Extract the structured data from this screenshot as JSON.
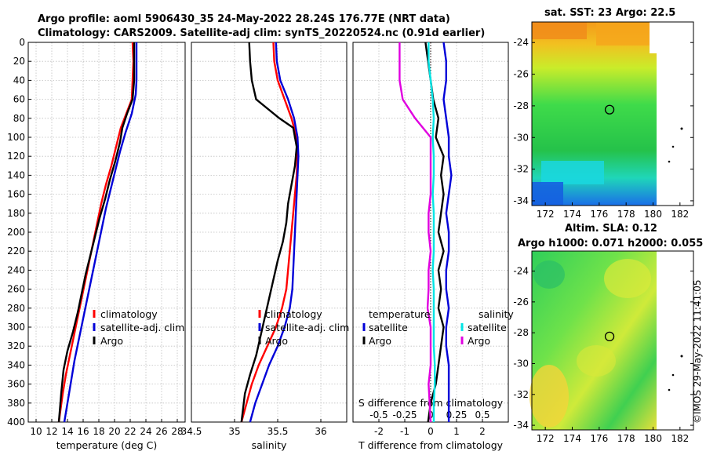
{
  "titles": {
    "line1": "Argo profile: aoml 5906430_35 24-May-2022 28.24S 176.77E (NRT data)",
    "line2": "Climatology: CARS2009. Satellite-adj clim: synTS_20220524.nc (0.91d earlier)",
    "sst": "sat. SST: 23 Argo: 22.5",
    "sla1": "Altim. SLA: 0.12",
    "sla2": "Argo h1000: 0.071 h2000: 0.055",
    "stamp": "©IMOS 29-May-2022 11:41:05"
  },
  "colors": {
    "climatology": "#ff0000",
    "satellite": "#0000d8",
    "argo": "#000000",
    "sal_satellite": "#00e5e5",
    "sal_argo": "#e000e0"
  },
  "legend": {
    "climatology": "climatology",
    "satellite_adj": "satellite-adj. clim",
    "argo": "Argo",
    "temperature": "temperature",
    "salinity": "salinity",
    "satellite": "satellite"
  },
  "chart_data": [
    {
      "type": "line",
      "name": "temperature-profile",
      "xlabel": "temperature (deg C)",
      "ylabel": "",
      "xlim": [
        9,
        29
      ],
      "ylim": [
        400,
        0
      ],
      "xticks": [
        "10",
        "12",
        "14",
        "16",
        "18",
        "20",
        "22",
        "24",
        "26",
        "28"
      ],
      "xtick_values": [
        10,
        12,
        14,
        16,
        18,
        20,
        22,
        24,
        26,
        28
      ],
      "yticks": [
        "0",
        "20",
        "40",
        "60",
        "80",
        "100",
        "120",
        "140",
        "160",
        "180",
        "200",
        "220",
        "240",
        "260",
        "280",
        "300",
        "320",
        "340",
        "360",
        "380",
        "400"
      ],
      "ytick_values": [
        0,
        20,
        40,
        60,
        80,
        100,
        120,
        140,
        160,
        180,
        200,
        220,
        240,
        260,
        280,
        300,
        320,
        340,
        360,
        380,
        400
      ],
      "series": [
        {
          "name": "climatology",
          "x": [
            22.3,
            22.4,
            22.3,
            22.2,
            21.5,
            20.8,
            20.2,
            19.6,
            18.9,
            18.3,
            17.8,
            17.3,
            16.8,
            16.3,
            15.8,
            15.3,
            14.8,
            14.3,
            13.8,
            13.4,
            12.9
          ],
          "depth": [
            0,
            20,
            40,
            60,
            75,
            90,
            110,
            130,
            150,
            170,
            190,
            210,
            230,
            250,
            270,
            290,
            310,
            330,
            350,
            370,
            400
          ]
        },
        {
          "name": "satellite-adj. clim",
          "x": [
            22.8,
            22.8,
            22.8,
            22.7,
            22.2,
            21.4,
            20.7,
            20.1,
            19.5,
            18.9,
            18.4,
            17.9,
            17.4,
            16.9,
            16.4,
            15.9,
            15.4,
            14.9,
            14.5,
            14.1,
            13.6
          ],
          "depth": [
            0,
            20,
            40,
            55,
            75,
            95,
            115,
            135,
            155,
            175,
            195,
            215,
            235,
            255,
            275,
            295,
            315,
            335,
            355,
            375,
            400
          ]
        },
        {
          "name": "Argo",
          "x": [
            22.5,
            22.5,
            22.5,
            22.3,
            21.6,
            21.0,
            20.7,
            20.1,
            19.4,
            18.8,
            18.1,
            17.5,
            16.9,
            16.3,
            15.8,
            15.3,
            14.7,
            14.0,
            13.5,
            13.2,
            12.9
          ],
          "depth": [
            0,
            20,
            40,
            60,
            75,
            90,
            105,
            125,
            145,
            165,
            185,
            205,
            225,
            245,
            265,
            285,
            305,
            325,
            345,
            370,
            400
          ]
        }
      ]
    },
    {
      "type": "line",
      "name": "salinity-profile",
      "xlabel": "salinity",
      "xlim": [
        34.5,
        36.3
      ],
      "ylim": [
        400,
        0
      ],
      "xticks": [
        "34.5",
        "35",
        "35.5",
        "36"
      ],
      "xtick_values": [
        34.5,
        35,
        35.5,
        36
      ],
      "series": [
        {
          "name": "climatology",
          "x": [
            35.45,
            35.46,
            35.5,
            35.58,
            35.66,
            35.72,
            35.73,
            35.72,
            35.7,
            35.68,
            35.66,
            35.64,
            35.62,
            35.6,
            35.55,
            35.48,
            35.38,
            35.28,
            35.2,
            35.14,
            35.08
          ],
          "depth": [
            0,
            20,
            40,
            60,
            80,
            100,
            120,
            140,
            160,
            180,
            200,
            220,
            240,
            260,
            280,
            300,
            320,
            340,
            360,
            380,
            400
          ]
        },
        {
          "name": "satellite-adj. clim",
          "x": [
            35.48,
            35.49,
            35.53,
            35.62,
            35.69,
            35.73,
            35.74,
            35.73,
            35.72,
            35.71,
            35.7,
            35.69,
            35.68,
            35.67,
            35.64,
            35.58,
            35.5,
            35.4,
            35.32,
            35.24,
            35.18
          ],
          "depth": [
            0,
            20,
            40,
            60,
            80,
            100,
            120,
            140,
            160,
            180,
            200,
            220,
            240,
            260,
            280,
            300,
            320,
            340,
            360,
            380,
            400
          ]
        },
        {
          "name": "Argo",
          "x": [
            35.17,
            35.18,
            35.2,
            35.25,
            35.52,
            35.68,
            35.72,
            35.7,
            35.66,
            35.62,
            35.6,
            35.56,
            35.5,
            35.45,
            35.4,
            35.35,
            35.3,
            35.25,
            35.18,
            35.12,
            35.08
          ],
          "depth": [
            0,
            20,
            40,
            60,
            80,
            90,
            110,
            130,
            150,
            170,
            190,
            210,
            230,
            250,
            270,
            290,
            310,
            330,
            350,
            370,
            400
          ]
        }
      ]
    },
    {
      "type": "line",
      "name": "difference-profile",
      "xlabel": "T difference from climatology",
      "xlabel_top": "S difference from climatology",
      "xlim": [
        -3,
        3
      ],
      "ylim": [
        400,
        0
      ],
      "xticks": [
        "-2",
        "-1",
        "0",
        "1",
        "2"
      ],
      "xtick_values": [
        -2,
        -1,
        0,
        1,
        2
      ],
      "xticks_top": [
        "-0.5",
        "-0.25",
        "0",
        "0.25",
        "0.5"
      ],
      "xtick_values_top": [
        -0.5,
        -0.25,
        0,
        0.25,
        0.5
      ],
      "series": [
        {
          "name": "temperature satellite",
          "x": [
            0.5,
            0.6,
            0.6,
            0.5,
            0.6,
            0.7,
            0.7,
            0.8,
            0.7,
            0.6,
            0.7,
            0.7,
            0.6,
            0.6,
            0.7,
            0.6,
            0.6,
            0.7,
            0.7,
            0.7,
            0.7
          ],
          "depth": [
            0,
            20,
            40,
            60,
            80,
            100,
            120,
            140,
            160,
            180,
            200,
            220,
            240,
            260,
            280,
            300,
            320,
            340,
            360,
            380,
            400
          ]
        },
        {
          "name": "temperature Argo",
          "x": [
            -0.2,
            -0.1,
            0.0,
            0.1,
            0.3,
            0.2,
            0.5,
            0.4,
            0.5,
            0.4,
            0.3,
            0.5,
            0.3,
            0.4,
            0.3,
            0.5,
            0.4,
            0.3,
            0.2,
            0.0,
            -0.1
          ],
          "depth": [
            0,
            20,
            40,
            60,
            80,
            100,
            120,
            140,
            160,
            180,
            200,
            220,
            240,
            260,
            280,
            300,
            320,
            340,
            360,
            380,
            400
          ]
        },
        {
          "name": "salinity satellite",
          "x": [
            -0.02,
            -0.02,
            0.0,
            0.02,
            0.03,
            0.02,
            0.03,
            0.03,
            0.02,
            0.03,
            0.03,
            0.03,
            0.02,
            0.03,
            0.03,
            0.03,
            0.03,
            0.04,
            0.04,
            0.03,
            0.03
          ],
          "depth": [
            0,
            20,
            40,
            60,
            80,
            100,
            120,
            140,
            160,
            180,
            200,
            220,
            240,
            260,
            280,
            300,
            320,
            340,
            360,
            380,
            400
          ]
        },
        {
          "name": "salinity Argo",
          "x": [
            -0.3,
            -0.3,
            -0.3,
            -0.27,
            -0.15,
            0.0,
            0.0,
            0.0,
            0.0,
            -0.02,
            -0.02,
            0.0,
            -0.02,
            -0.02,
            -0.03,
            0.0,
            0.0,
            0.0,
            -0.02,
            -0.01,
            0.0
          ],
          "depth": [
            0,
            20,
            40,
            60,
            80,
            100,
            120,
            140,
            160,
            180,
            200,
            220,
            240,
            260,
            280,
            300,
            320,
            340,
            360,
            380,
            400
          ]
        }
      ]
    },
    {
      "type": "heatmap",
      "name": "sst-map",
      "title": "sat. SST: 23 Argo: 22.5",
      "xlim": [
        171,
        183
      ],
      "ylim": [
        -34.3,
        -22.7
      ],
      "xticks": [
        "172",
        "174",
        "176",
        "178",
        "180",
        "182"
      ],
      "xtick_values": [
        172,
        174,
        176,
        178,
        180,
        182
      ],
      "yticks": [
        "-24",
        "-26",
        "-28",
        "-30",
        "-32",
        "-34"
      ],
      "ytick_values": [
        -24,
        -26,
        -28,
        -30,
        -32,
        -34
      ],
      "argo_position": [
        176.77,
        -28.24
      ]
    },
    {
      "type": "heatmap",
      "name": "sla-map",
      "title": "Altim. SLA: 0.12",
      "xlim": [
        171,
        183
      ],
      "ylim": [
        -34.3,
        -22.7
      ],
      "xticks": [
        "172",
        "174",
        "176",
        "178",
        "180",
        "182"
      ],
      "xtick_values": [
        172,
        174,
        176,
        178,
        180,
        182
      ],
      "yticks": [
        "-24",
        "-26",
        "-28",
        "-30",
        "-32",
        "-34"
      ],
      "ytick_values": [
        -24,
        -26,
        -28,
        -30,
        -32,
        -34
      ],
      "argo_position": [
        176.77,
        -28.24
      ]
    }
  ]
}
